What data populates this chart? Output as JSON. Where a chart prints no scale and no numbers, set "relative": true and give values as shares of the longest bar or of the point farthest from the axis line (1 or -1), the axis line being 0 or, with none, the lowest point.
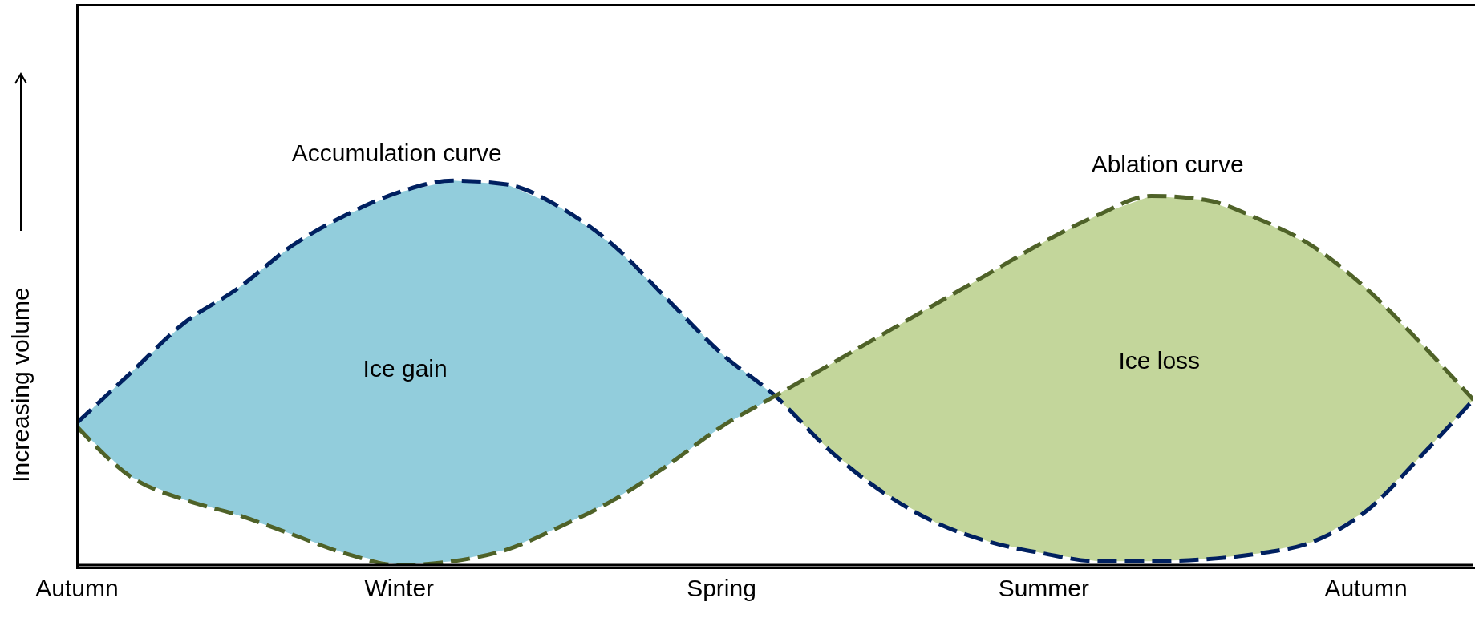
{
  "chart_data": {
    "type": "line",
    "relative": true,
    "ylabel": "Increasing volume",
    "categories": [
      "Autumn",
      null,
      null,
      null,
      null,
      null,
      "Winter",
      null,
      null,
      null,
      null,
      null,
      "Spring",
      null,
      null,
      null,
      null,
      null,
      "Summer",
      null,
      null,
      null,
      null,
      null,
      "Autumn",
      null,
      null
    ],
    "series": [
      {
        "color": "#002060",
        "line_style": "dashed",
        "values": [
          0.37,
          0.5,
          0.63,
          0.72,
          0.83,
          0.91,
          0.97,
          1.0,
          0.99,
          0.93,
          0.83,
          0.69,
          0.55,
          0.44,
          0.3,
          0.19,
          0.11,
          0.06,
          0.03,
          0.01,
          0.01,
          0.015,
          0.03,
          0.06,
          0.14,
          0.28,
          0.43
        ]
      },
      {
        "color": "#4f6228",
        "line_style": "dashed",
        "values": [
          0.36,
          0.23,
          0.17,
          0.13,
          0.08,
          0.03,
          0.0,
          0.01,
          0.04,
          0.1,
          0.17,
          0.26,
          0.36,
          0.44,
          0.52,
          0.6,
          0.68,
          0.76,
          0.84,
          0.91,
          0.96,
          0.95,
          0.9,
          0.83,
          0.72,
          0.58,
          0.43
        ]
      }
    ],
    "annotations": [
      "Accumulation curve",
      "Ablation curve",
      "Ice gain",
      "Ice loss"
    ],
    "marker": "none"
  }
}
